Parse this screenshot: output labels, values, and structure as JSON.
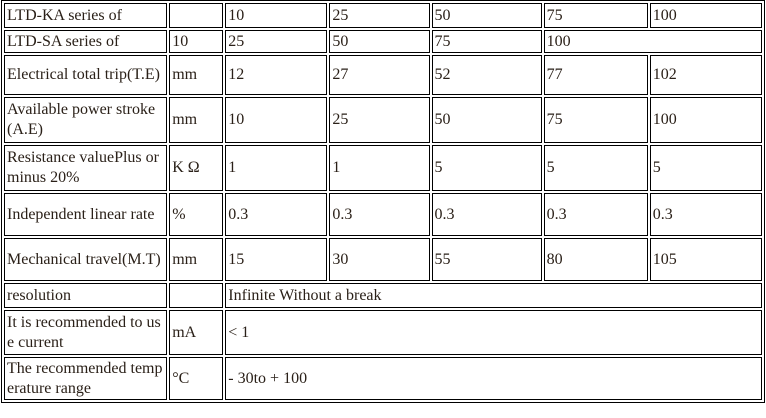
{
  "rows": [
    {
      "label": "LTD-KA series of",
      "unit": "",
      "values": [
        "10",
        "25",
        "50",
        "75",
        "100"
      ]
    },
    {
      "label": "LTD-SA series of",
      "unit": "10",
      "values": [
        "25",
        "50",
        "75",
        "100"
      ]
    },
    {
      "label": "Electrical total trip(T.E)",
      "unit": "mm",
      "values": [
        "12",
        "27",
        "52",
        "77",
        "102"
      ]
    },
    {
      "label": "Available power stroke(A.E)",
      "unit": "mm",
      "values": [
        "10",
        "25",
        "50",
        "75",
        "100"
      ]
    },
    {
      "label": "Resistance valuePlus or minus 20%",
      "unit": "K Ω",
      "values": [
        "1",
        "1",
        "5",
        "5",
        "5"
      ]
    },
    {
      "label": "Independent linear rate",
      "unit": "%",
      "values": [
        "0.3",
        "0.3",
        "0.3",
        "0.3",
        "0.3"
      ]
    },
    {
      "label": "Mechanical travel(M.T)",
      "unit": "mm",
      "values": [
        "15",
        "30",
        "55",
        "80",
        "105"
      ]
    },
    {
      "label": "resolution",
      "unit": "",
      "values": [
        "Infinite Without a break"
      ]
    },
    {
      "label": "It is recommended to use current",
      "unit": "mA",
      "values": [
        "< 1"
      ]
    },
    {
      "label": "The recommended temperature range",
      "unit": "°C",
      "values": [
        "- 30to + 100"
      ]
    }
  ]
}
